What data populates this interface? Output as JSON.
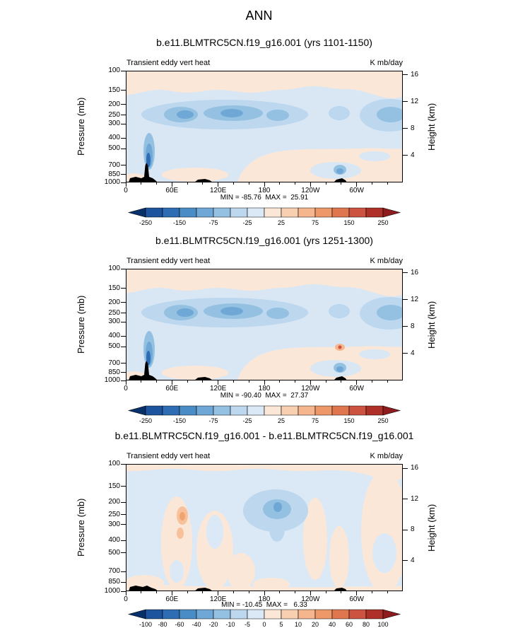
{
  "figure": {
    "title": "ANN"
  },
  "panels": [
    {
      "title": "b.e11.BLMTRC5CN.f19_g16.001 (yrs 1101-1150)",
      "field_label": "Transient eddy vert heat",
      "units": "K mb/day",
      "left_axis_title": "Pressure (mb)",
      "right_axis_title": "Height (km)",
      "minmax": "MIN = -85.76  MAX =  25.91",
      "pressure_ticks": [
        100,
        150,
        200,
        250,
        300,
        400,
        500,
        700,
        850,
        1000
      ],
      "height_ticks": [
        16,
        12,
        8,
        4
      ],
      "lon_ticks": [
        {
          "deg": 0,
          "label": "0"
        },
        {
          "deg": 60,
          "label": "60E"
        },
        {
          "deg": 120,
          "label": "120E"
        },
        {
          "deg": 180,
          "label": "180"
        },
        {
          "deg": 240,
          "label": "120W"
        },
        {
          "deg": 300,
          "label": "60W"
        }
      ],
      "colorbar": {
        "label_stride": 2,
        "tick_labels": [
          "-250",
          "-150",
          "-75",
          "-25",
          "25",
          "75",
          "150",
          "250"
        ],
        "colors": [
          "#08306b",
          "#1c549e",
          "#2e6db4",
          "#4a8cc6",
          "#6fa8d6",
          "#94c1e2",
          "#bcd7ee",
          "#dbe9f6",
          "#fbe7d7",
          "#f9cfb2",
          "#f5b68d",
          "#ee9869",
          "#e0764e",
          "#cc5340",
          "#ad3129",
          "#8e1b1d"
        ]
      }
    },
    {
      "title": "b.e11.BLMTRC5CN.f19_g16.001 (yrs 1251-1300)",
      "field_label": "Transient eddy vert heat",
      "units": "K mb/day",
      "left_axis_title": "Pressure (mb)",
      "right_axis_title": "Height (km)",
      "minmax": "MIN = -90.40  MAX =  27.37",
      "pressure_ticks": [
        100,
        150,
        200,
        250,
        300,
        400,
        500,
        700,
        850,
        1000
      ],
      "height_ticks": [
        16,
        12,
        8,
        4
      ],
      "lon_ticks": [
        {
          "deg": 0,
          "label": "0"
        },
        {
          "deg": 60,
          "label": "60E"
        },
        {
          "deg": 120,
          "label": "120E"
        },
        {
          "deg": 180,
          "label": "180"
        },
        {
          "deg": 240,
          "label": "120W"
        },
        {
          "deg": 300,
          "label": "60W"
        }
      ],
      "colorbar": {
        "label_stride": 2,
        "tick_labels": [
          "-250",
          "-150",
          "-75",
          "-25",
          "25",
          "75",
          "150",
          "250"
        ],
        "colors": [
          "#08306b",
          "#1c549e",
          "#2e6db4",
          "#4a8cc6",
          "#6fa8d6",
          "#94c1e2",
          "#bcd7ee",
          "#dbe9f6",
          "#fbe7d7",
          "#f9cfb2",
          "#f5b68d",
          "#ee9869",
          "#e0764e",
          "#cc5340",
          "#ad3129",
          "#8e1b1d"
        ]
      }
    },
    {
      "title": "b.e11.BLMTRC5CN.f19_g16.001 - b.e11.BLMTRC5CN.f19_g16.001",
      "field_label": "Transient eddy vert heat",
      "units": "K mb/day",
      "left_axis_title": "Pressure (mb)",
      "right_axis_title": "Height (km)",
      "minmax": "MIN = -10.45  MAX =   6.33",
      "pressure_ticks": [
        100,
        150,
        200,
        250,
        300,
        400,
        500,
        700,
        850,
        1000
      ],
      "height_ticks": [
        16,
        12,
        8,
        4
      ],
      "lon_ticks": [
        {
          "deg": 0,
          "label": "0"
        },
        {
          "deg": 60,
          "label": "60E"
        },
        {
          "deg": 120,
          "label": "120E"
        },
        {
          "deg": 180,
          "label": "180"
        },
        {
          "deg": 240,
          "label": "120W"
        },
        {
          "deg": 300,
          "label": "60W"
        }
      ],
      "colorbar": {
        "label_stride": 1,
        "tick_labels": [
          "-100",
          "-80",
          "-60",
          "-40",
          "-20",
          "-10",
          "-5",
          "0",
          "5",
          "10",
          "20",
          "40",
          "60",
          "80",
          "100"
        ],
        "colors": [
          "#08306b",
          "#1c549e",
          "#2e6db4",
          "#4a8cc6",
          "#6fa8d6",
          "#94c1e2",
          "#bcd7ee",
          "#dbe9f6",
          "#fbe7d7",
          "#f9cfb2",
          "#f5b68d",
          "#ee9869",
          "#e0764e",
          "#cc5340",
          "#ad3129",
          "#8e1b1d"
        ]
      }
    }
  ],
  "chart_data": [
    {
      "type": "heatmap",
      "note": "Filled-contour longitude-pressure cross section (zonal transect), log pressure axis",
      "title": "b.e11.BLMTRC5CN.f19_g16.001 (yrs 1101-1150)",
      "variable": "Transient eddy vert heat",
      "units": "K mb/day",
      "x_ticks": [
        "0",
        "60E",
        "120E",
        "180",
        "120W",
        "60W"
      ],
      "x_range_deg": [
        0,
        360
      ],
      "ylabel": "Pressure (mb)",
      "y_ticks": [
        100,
        150,
        200,
        250,
        300,
        400,
        500,
        700,
        850,
        1000
      ],
      "y2label": "Height (km)",
      "y2_ticks": [
        16,
        12,
        8,
        4
      ],
      "min": -85.76,
      "max": 25.91,
      "colorbar_tick_values": [
        -250,
        -150,
        -75,
        -25,
        25,
        75,
        150,
        250
      ],
      "legend_position": "bottom"
    },
    {
      "type": "heatmap",
      "note": "Filled-contour longitude-pressure cross section (zonal transect), log pressure axis",
      "title": "b.e11.BLMTRC5CN.f19_g16.001 (yrs 1251-1300)",
      "variable": "Transient eddy vert heat",
      "units": "K mb/day",
      "x_ticks": [
        "0",
        "60E",
        "120E",
        "180",
        "120W",
        "60W"
      ],
      "x_range_deg": [
        0,
        360
      ],
      "ylabel": "Pressure (mb)",
      "y_ticks": [
        100,
        150,
        200,
        250,
        300,
        400,
        500,
        700,
        850,
        1000
      ],
      "y2label": "Height (km)",
      "y2_ticks": [
        16,
        12,
        8,
        4
      ],
      "min": -90.4,
      "max": 27.37,
      "colorbar_tick_values": [
        -250,
        -150,
        -75,
        -25,
        25,
        75,
        150,
        250
      ],
      "legend_position": "bottom"
    },
    {
      "type": "heatmap",
      "note": "Difference panel: case 1 minus case 2, same transect and axes",
      "title": "b.e11.BLMTRC5CN.f19_g16.001 - b.e11.BLMTRC5CN.f19_g16.001",
      "variable": "Transient eddy vert heat",
      "units": "K mb/day",
      "x_ticks": [
        "0",
        "60E",
        "120E",
        "180",
        "120W",
        "60W"
      ],
      "x_range_deg": [
        0,
        360
      ],
      "ylabel": "Pressure (mb)",
      "y_ticks": [
        100,
        150,
        200,
        250,
        300,
        400,
        500,
        700,
        850,
        1000
      ],
      "y2label": "Height (km)",
      "y2_ticks": [
        16,
        12,
        8,
        4
      ],
      "min": -10.45,
      "max": 6.33,
      "colorbar_tick_values": [
        -100,
        -80,
        -60,
        -40,
        -20,
        -10,
        -5,
        0,
        5,
        10,
        20,
        40,
        60,
        80,
        100
      ],
      "legend_position": "bottom"
    }
  ]
}
